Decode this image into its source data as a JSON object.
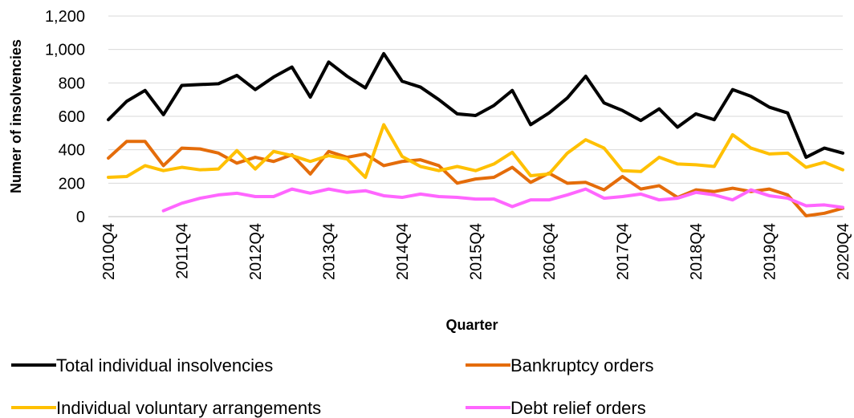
{
  "chart_data": {
    "type": "line",
    "title": "",
    "xlabel": "Quarter",
    "ylabel": "Numer of insolvencies",
    "ylim": [
      0,
      1200
    ],
    "yticks": [
      "0",
      "200",
      "400",
      "600",
      "800",
      "1,000",
      "1,200"
    ],
    "ytick_values": [
      0,
      200,
      400,
      600,
      800,
      1000,
      1200
    ],
    "x": [
      "2010Q4",
      "2011Q1",
      "2011Q2",
      "2011Q3",
      "2011Q4",
      "2012Q1",
      "2012Q2",
      "2012Q3",
      "2012Q4",
      "2013Q1",
      "2013Q2",
      "2013Q3",
      "2013Q4",
      "2014Q1",
      "2014Q2",
      "2014Q3",
      "2014Q4",
      "2015Q1",
      "2015Q2",
      "2015Q3",
      "2015Q4",
      "2016Q1",
      "2016Q2",
      "2016Q3",
      "2016Q4",
      "2017Q1",
      "2017Q2",
      "2017Q3",
      "2017Q4",
      "2018Q1",
      "2018Q2",
      "2018Q3",
      "2018Q4",
      "2019Q1",
      "2019Q2",
      "2019Q3",
      "2019Q4",
      "2020Q1",
      "2020Q2",
      "2020Q3",
      "2020Q4"
    ],
    "xtick_labels": [
      "2010Q4",
      "2011Q4",
      "2012Q4",
      "2013Q4",
      "2014Q4",
      "2015Q4",
      "2016Q4",
      "2017Q4",
      "2018Q4",
      "2019Q4",
      "2020Q4"
    ],
    "grid": "horizontal",
    "legend_position": "bottom",
    "series": [
      {
        "name": "Total individual insolvencies",
        "color": "#000000",
        "values": [
          580,
          690,
          755,
          610,
          785,
          790,
          795,
          845,
          760,
          835,
          895,
          715,
          925,
          840,
          770,
          975,
          810,
          775,
          700,
          615,
          605,
          665,
          755,
          550,
          620,
          710,
          840,
          680,
          635,
          575,
          645,
          535,
          615,
          580,
          760,
          720,
          655,
          620,
          355,
          410,
          380
        ]
      },
      {
        "name": "Bankruptcy orders",
        "color": "#E46C0A",
        "values": [
          350,
          450,
          450,
          305,
          410,
          405,
          380,
          320,
          355,
          330,
          370,
          255,
          390,
          355,
          375,
          305,
          330,
          340,
          305,
          200,
          225,
          235,
          295,
          205,
          260,
          200,
          205,
          160,
          240,
          165,
          185,
          115,
          160,
          150,
          170,
          150,
          165,
          130,
          5,
          20,
          50
        ]
      },
      {
        "name": "Individual voluntary arrangements",
        "color": "#FFC000",
        "values": [
          235,
          240,
          305,
          275,
          295,
          280,
          285,
          395,
          285,
          390,
          365,
          330,
          365,
          345,
          235,
          550,
          360,
          300,
          275,
          300,
          275,
          315,
          385,
          245,
          255,
          380,
          460,
          410,
          275,
          270,
          355,
          315,
          310,
          300,
          490,
          410,
          375,
          380,
          295,
          325,
          280
        ]
      },
      {
        "name": "Debt relief orders",
        "color": "#FF66FF",
        "values": [
          null,
          null,
          null,
          35,
          80,
          110,
          130,
          140,
          120,
          120,
          165,
          140,
          165,
          145,
          155,
          125,
          115,
          135,
          120,
          115,
          105,
          105,
          60,
          100,
          100,
          130,
          165,
          110,
          120,
          135,
          100,
          110,
          145,
          130,
          100,
          160,
          125,
          110,
          65,
          70,
          55
        ]
      }
    ]
  }
}
